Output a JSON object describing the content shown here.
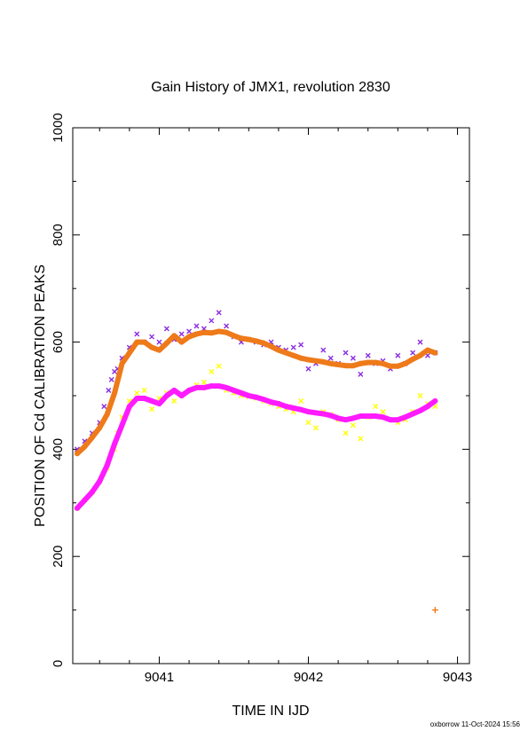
{
  "chart_data": {
    "type": "scatter",
    "title": "Gain History of JMX1, revolution 2830",
    "xlabel": "TIME IN IJD",
    "ylabel": "POSITION OF Cd CALIBRATION PEAKS",
    "xlim": [
      9040.42,
      9043.08
    ],
    "ylim": [
      0,
      1000
    ],
    "xticks": [
      9041,
      9042,
      9043
    ],
    "xtick_labels": [
      "9041",
      "9042",
      "9043"
    ],
    "yticks": [
      0,
      200,
      400,
      600,
      800,
      1000
    ],
    "ytick_labels": [
      "0",
      "200",
      "400",
      "600",
      "800",
      "1000"
    ],
    "grid": false,
    "footer": "oxborrow 11-Oct-2024 15:56",
    "series": [
      {
        "color": "#8a2be2",
        "marker": "x",
        "x": [
          9040.45,
          9040.5,
          9040.55,
          9040.6,
          9040.63,
          9040.66,
          9040.68,
          9040.7,
          9040.72,
          9040.75,
          9040.8,
          9040.85,
          9040.9,
          9040.95,
          9041.0,
          9041.05,
          9041.1,
          9041.15,
          9041.2,
          9041.25,
          9041.3,
          9041.35,
          9041.4,
          9041.45,
          9041.5,
          9041.55,
          9041.6,
          9041.65,
          9041.7,
          9041.75,
          9041.8,
          9041.85,
          9041.9,
          9041.95,
          9042.0,
          9042.05,
          9042.1,
          9042.15,
          9042.2,
          9042.25,
          9042.3,
          9042.35,
          9042.4,
          9042.45,
          9042.5,
          9042.55,
          9042.6,
          9042.65,
          9042.7,
          9042.75,
          9042.8,
          9042.85
        ],
        "y": [
          400,
          415,
          430,
          450,
          480,
          510,
          530,
          545,
          550,
          570,
          590,
          615,
          600,
          610,
          600,
          625,
          605,
          615,
          620,
          630,
          625,
          640,
          655,
          630,
          610,
          600,
          605,
          600,
          595,
          600,
          590,
          585,
          590,
          595,
          550,
          560,
          585,
          570,
          560,
          580,
          570,
          540,
          575,
          560,
          565,
          550,
          575,
          560,
          580,
          600,
          575,
          580
        ]
      },
      {
        "color": "#ee7a1a",
        "marker": "line",
        "x": [
          9040.45,
          9040.5,
          9040.55,
          9040.6,
          9040.65,
          9040.7,
          9040.75,
          9040.8,
          9040.85,
          9040.9,
          9040.95,
          9041.0,
          9041.05,
          9041.1,
          9041.15,
          9041.2,
          9041.25,
          9041.3,
          9041.35,
          9041.4,
          9041.45,
          9041.5,
          9041.55,
          9041.6,
          9041.65,
          9041.7,
          9041.75,
          9041.8,
          9041.85,
          9041.9,
          9041.95,
          9042.0,
          9042.05,
          9042.1,
          9042.15,
          9042.2,
          9042.25,
          9042.3,
          9042.35,
          9042.4,
          9042.45,
          9042.5,
          9042.55,
          9042.6,
          9042.65,
          9042.7,
          9042.75,
          9042.8,
          9042.85
        ],
        "y": [
          392,
          405,
          422,
          440,
          465,
          505,
          560,
          580,
          600,
          600,
          590,
          585,
          598,
          612,
          600,
          610,
          615,
          618,
          617,
          620,
          618,
          612,
          607,
          605,
          602,
          598,
          592,
          585,
          580,
          575,
          570,
          567,
          565,
          563,
          560,
          558,
          556,
          556,
          560,
          562,
          562,
          560,
          555,
          555,
          560,
          568,
          575,
          585,
          580
        ]
      },
      {
        "color": "#ee7a1a",
        "marker": "+",
        "x": [
          9042.85
        ],
        "y": [
          100
        ]
      },
      {
        "color": "#ffff00",
        "marker": "x",
        "x": [
          9040.45,
          9040.5,
          9040.55,
          9040.6,
          9040.65,
          9040.7,
          9040.72,
          9040.75,
          9040.8,
          9040.85,
          9040.9,
          9040.95,
          9041.0,
          9041.05,
          9041.1,
          9041.15,
          9041.2,
          9041.25,
          9041.3,
          9041.35,
          9041.4,
          9041.45,
          9041.5,
          9041.55,
          9041.6,
          9041.65,
          9041.7,
          9041.75,
          9041.8,
          9041.85,
          9041.9,
          9041.95,
          9042.0,
          9042.05,
          9042.1,
          9042.15,
          9042.2,
          9042.25,
          9042.3,
          9042.35,
          9042.4,
          9042.45,
          9042.5,
          9042.55,
          9042.6,
          9042.65,
          9042.7,
          9042.75,
          9042.8,
          9042.85
        ],
        "y": [
          290,
          305,
          320,
          340,
          365,
          400,
          430,
          460,
          490,
          505,
          510,
          475,
          495,
          505,
          490,
          500,
          510,
          520,
          525,
          545,
          555,
          510,
          505,
          500,
          498,
          495,
          490,
          485,
          480,
          475,
          470,
          490,
          450,
          440,
          470,
          465,
          455,
          430,
          445,
          420,
          460,
          480,
          470,
          455,
          450,
          455,
          470,
          500,
          485,
          480
        ]
      },
      {
        "color": "#ff1aff",
        "marker": "line",
        "x": [
          9040.45,
          9040.5,
          9040.55,
          9040.6,
          9040.65,
          9040.7,
          9040.75,
          9040.8,
          9040.85,
          9040.9,
          9040.95,
          9041.0,
          9041.05,
          9041.1,
          9041.15,
          9041.2,
          9041.25,
          9041.3,
          9041.35,
          9041.4,
          9041.45,
          9041.5,
          9041.55,
          9041.6,
          9041.65,
          9041.7,
          9041.75,
          9041.8,
          9041.85,
          9041.9,
          9041.95,
          9042.0,
          9042.05,
          9042.1,
          9042.15,
          9042.2,
          9042.25,
          9042.3,
          9042.35,
          9042.4,
          9042.45,
          9042.5,
          9042.55,
          9042.6,
          9042.65,
          9042.7,
          9042.75,
          9042.8,
          9042.85
        ],
        "y": [
          290,
          305,
          320,
          340,
          370,
          410,
          445,
          480,
          495,
          495,
          490,
          485,
          500,
          510,
          500,
          510,
          515,
          515,
          518,
          518,
          515,
          510,
          505,
          500,
          497,
          493,
          488,
          485,
          480,
          477,
          474,
          470,
          468,
          466,
          463,
          458,
          455,
          458,
          462,
          462,
          462,
          460,
          455,
          455,
          460,
          466,
          472,
          480,
          490
        ]
      }
    ]
  }
}
